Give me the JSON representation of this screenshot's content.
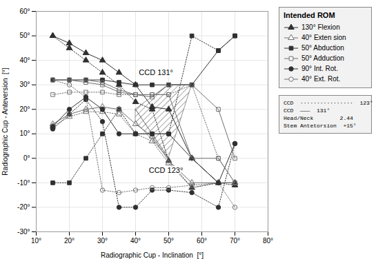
{
  "chart_data": {
    "type": "line",
    "xlabel": "Radiographic Cup - Inclination  [°]",
    "ylabel": "Radiographic Cup - Anteversion  [°]",
    "xlim": [
      10,
      80
    ],
    "ylim": [
      -30,
      60
    ],
    "xticks": [
      {
        "value": 10,
        "label": "10°"
      },
      {
        "value": 20,
        "label": "20°"
      },
      {
        "value": 30,
        "label": "30°"
      },
      {
        "value": 40,
        "label": "40°"
      },
      {
        "value": 50,
        "label": "50°"
      },
      {
        "value": 60,
        "label": "60°"
      },
      {
        "value": 70,
        "label": "70°"
      },
      {
        "value": 80,
        "label": "80°"
      }
    ],
    "yticks": [
      {
        "value": -30,
        "label": "-30°"
      },
      {
        "value": -20,
        "label": "-20°"
      },
      {
        "value": -10,
        "label": "-10°"
      },
      {
        "value": 0,
        "label": "0°"
      },
      {
        "value": 10,
        "label": "10°"
      },
      {
        "value": 20,
        "label": "20°"
      },
      {
        "value": 30,
        "label": "30°"
      },
      {
        "value": 40,
        "label": "40°"
      },
      {
        "value": 50,
        "label": "50°"
      },
      {
        "value": 60,
        "label": "60°"
      }
    ],
    "grid": true,
    "legend": "upper right",
    "legend_title": "Intended ROM",
    "x": [
      15,
      20,
      25,
      30,
      35,
      40,
      45,
      50,
      57,
      65,
      70
    ],
    "series": [
      {
        "name": "130° Flexion",
        "color": "#303030",
        "marker": "triangle",
        "line_style": "dotted",
        "values": [
          50,
          45,
          40,
          35,
          30,
          23,
          20,
          -1,
          -12,
          -10,
          -11
        ]
      },
      {
        "name": "40° Exten sion",
        "color": "#707070",
        "marker": "triangle-open",
        "line_style": "dotted",
        "values": [
          13,
          17,
          19,
          19,
          18,
          10,
          7,
          -2,
          -12,
          -10,
          -10
        ]
      },
      {
        "name": "50° Abduction",
        "color": "#303030",
        "marker": "square",
        "line_style": "dotted",
        "values": [
          -10,
          -10,
          0,
          10,
          20,
          10,
          10,
          10,
          50,
          44,
          50
        ]
      },
      {
        "name": "50° Adduction",
        "color": "#707070",
        "marker": "square-open",
        "line_style": "dotted",
        "values": [
          26,
          27,
          27,
          27,
          26,
          26,
          26,
          26,
          30,
          0,
          -10
        ]
      },
      {
        "name": "90° Int. Rot.",
        "color": "#303030",
        "marker": "circle",
        "line_style": "dotted",
        "values": [
          12,
          18,
          24,
          15,
          -20,
          -20,
          -13,
          -13,
          -14,
          -20,
          6
        ]
      },
      {
        "name": "40° Ext. Rot.",
        "color": "#707070",
        "marker": "circle-open",
        "line_style": "dotted",
        "values": [
          32,
          30,
          25,
          -13,
          -14,
          -13,
          -12,
          -12,
          -11,
          -10,
          -20
        ]
      },
      {
        "name": "130° Flexion",
        "color": "#303030",
        "marker": "triangle",
        "line_style": "solid",
        "values": [
          50,
          47,
          43,
          40,
          35,
          30,
          21,
          20,
          0,
          -10,
          -10
        ]
      },
      {
        "name": "40° Exten sion",
        "color": "#707070",
        "marker": "triangle-open",
        "line_style": "solid",
        "values": [
          14,
          18,
          20,
          21,
          20,
          14,
          9,
          -1,
          -10,
          -10,
          -10
        ]
      },
      {
        "name": "50° Abduction",
        "color": "#303030",
        "marker": "square",
        "line_style": "solid",
        "values": [
          32,
          32,
          32,
          32,
          31,
          30,
          30,
          30,
          30,
          44,
          50
        ]
      },
      {
        "name": "50° Adduction",
        "color": "#707070",
        "marker": "square-open",
        "line_style": "solid",
        "values": [
          32,
          32,
          31,
          30,
          27,
          26,
          25,
          30,
          30,
          20,
          0
        ]
      },
      {
        "name": "90° Int. Rot.",
        "color": "#303030",
        "marker": "circle",
        "line_style": "solid",
        "values": [
          13,
          20,
          25,
          20,
          10,
          10,
          10,
          10,
          0,
          -10,
          6
        ]
      },
      {
        "name": "40° Ext. Rot.",
        "color": "#707070",
        "marker": "circle-open",
        "line_style": "solid",
        "values": [
          32,
          32,
          32,
          31,
          28,
          26,
          26,
          26,
          0,
          0,
          -10
        ]
      }
    ],
    "zones": [
      [
        [
          40,
          20
        ],
        [
          50,
          30
        ],
        [
          57,
          30
        ],
        [
          50,
          0
        ]
      ],
      [
        [
          40,
          15
        ],
        [
          40,
          20
        ],
        [
          50,
          0
        ]
      ]
    ],
    "annotations": [
      {
        "x": 41,
        "y": 35,
        "text": "CCD 131°"
      },
      {
        "x": 44,
        "y": -5,
        "text": "CCD 123°"
      }
    ],
    "info_box": [
      "CCD  ················  123°",
      "CCD  ———  131°",
      "Head/Neck        2.44",
      "Stem Antetorsion  +15°"
    ]
  }
}
